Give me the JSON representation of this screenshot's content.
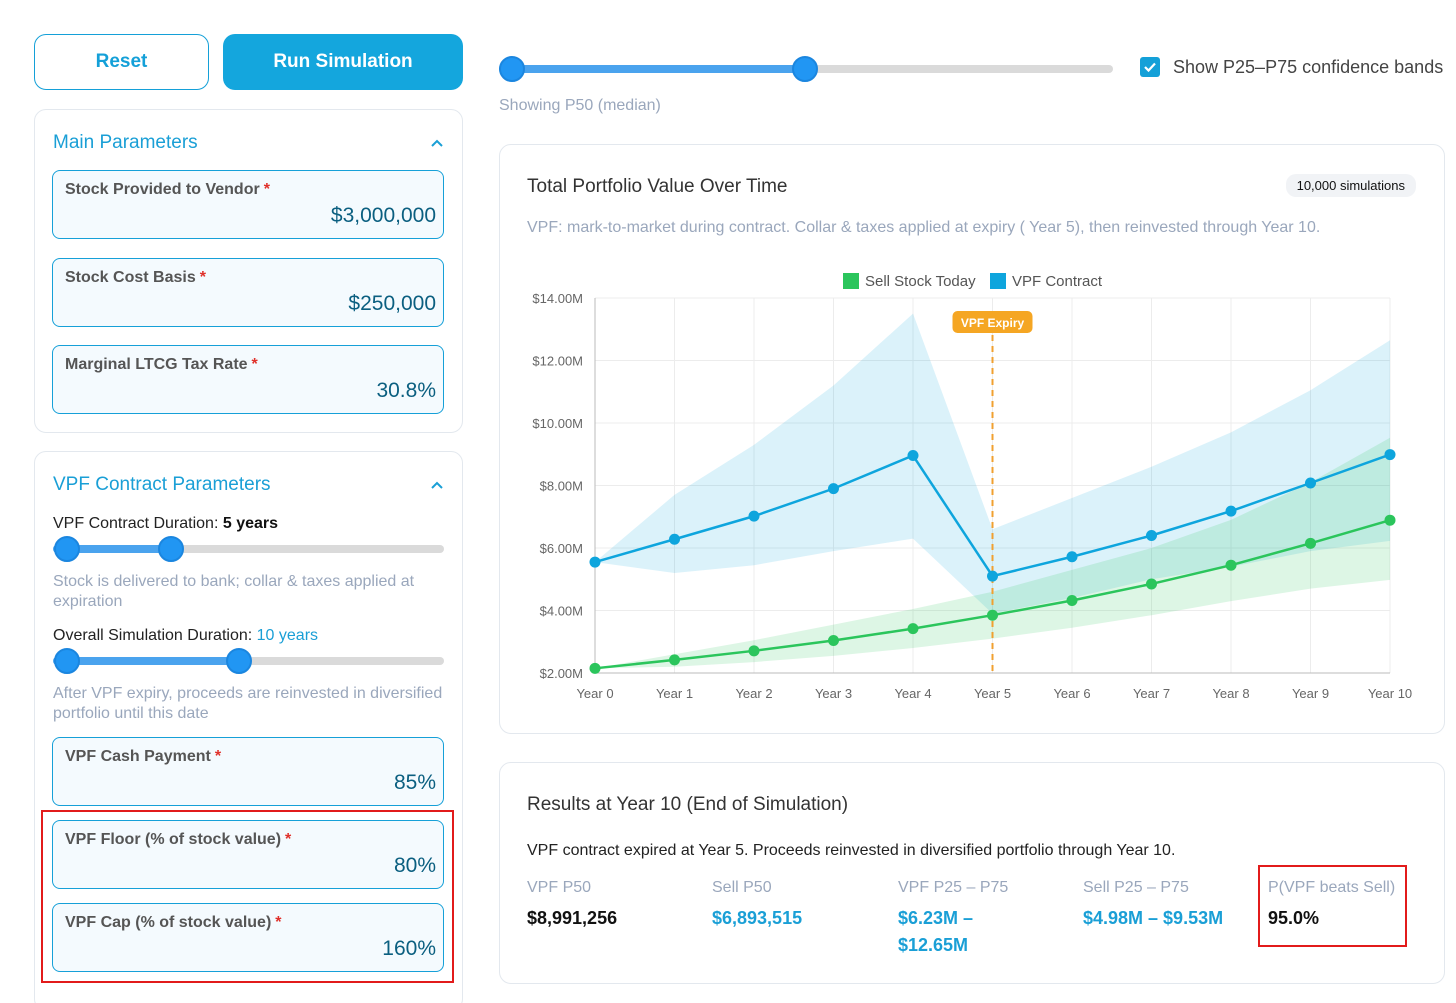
{
  "toolbar": {
    "reset_label": "Reset",
    "run_label": "Run Simulation"
  },
  "main_params": {
    "title": "Main Parameters",
    "fields": [
      {
        "label": "Stock Provided to Vendor",
        "value": "$3,000,000"
      },
      {
        "label": "Stock Cost Basis",
        "value": "$250,000"
      },
      {
        "label": "Marginal LTCG Tax Rate",
        "value": "30.8%"
      }
    ]
  },
  "vpf_params": {
    "title": "VPF Contract Parameters",
    "contract_duration": {
      "label": "VPF Contract Duration:",
      "value": "5 years",
      "hint": "Stock is delivered to bank; collar & taxes applied at expiration"
    },
    "sim_duration": {
      "label": "Overall Simulation Duration:",
      "value": "10 years",
      "hint": "After VPF expiry, proceeds are reinvested in diversified portfolio until this date"
    },
    "fields": [
      {
        "label": "VPF Cash Payment",
        "value": "85%"
      },
      {
        "label": "VPF Floor (% of stock value)",
        "value": "80%"
      },
      {
        "label": "VPF Cap (% of stock value)",
        "value": "160%"
      }
    ]
  },
  "percentile_control": {
    "checkbox_label": "Show P25–P75 confidence bands",
    "checked": true,
    "showing": "Showing P50 (median)"
  },
  "chart_panel": {
    "title": "Total Portfolio Value Over Time",
    "badge": "10,000 simulations",
    "subtitle": "VPF: mark-to-market during contract. Collar & taxes applied at expiry ( Year 5), then reinvested through Year 10."
  },
  "chart_data": {
    "type": "line",
    "categories": [
      "Year 0",
      "Year 1",
      "Year 2",
      "Year 3",
      "Year 4",
      "Year 5",
      "Year 6",
      "Year 7",
      "Year 8",
      "Year 9",
      "Year 10"
    ],
    "y_ticks": [
      "$2.00M",
      "$4.00M",
      "$6.00M",
      "$8.00M",
      "$10.00M",
      "$12.00M",
      "$14.00M"
    ],
    "ylim": [
      2,
      14
    ],
    "annotation": "VPF Expiry",
    "annotation_x": 5,
    "legend": [
      "Sell Stock Today",
      "VPF Contract"
    ],
    "series": [
      {
        "name": "Sell Stock Today",
        "color": "#2bc55c",
        "values": [
          2.15,
          2.42,
          2.71,
          3.04,
          3.42,
          3.85,
          4.32,
          4.85,
          5.45,
          6.15,
          6.89
        ],
        "p25": [
          2.15,
          2.2,
          2.35,
          2.55,
          2.8,
          3.1,
          3.45,
          3.85,
          4.3,
          4.7,
          4.98
        ],
        "p75": [
          2.15,
          2.6,
          3.05,
          3.55,
          4.05,
          4.6,
          5.3,
          6.0,
          6.9,
          8.1,
          9.53
        ]
      },
      {
        "name": "VPF Contract",
        "color": "#0ea5dd",
        "values": [
          5.55,
          6.28,
          7.02,
          7.9,
          8.96,
          5.1,
          5.72,
          6.4,
          7.18,
          8.08,
          8.99
        ],
        "p25": [
          5.55,
          5.2,
          5.45,
          5.9,
          6.3,
          3.9,
          4.4,
          5.0,
          5.4,
          5.9,
          6.23
        ],
        "p75": [
          5.55,
          7.7,
          9.3,
          11.2,
          13.5,
          6.6,
          7.6,
          8.6,
          9.7,
          11.05,
          12.65
        ]
      }
    ]
  },
  "results": {
    "title": "Results at Year 10 (End of Simulation)",
    "description": "VPF contract expired at Year 5. Proceeds reinvested in diversified portfolio through Year 10.",
    "metrics": [
      {
        "label": "VPF P50",
        "value": "$8,991,256"
      },
      {
        "label": "Sell P50",
        "value": "$6,893,515"
      },
      {
        "label": "VPF P25 – P75",
        "value": "$6.23M – $12.65M"
      },
      {
        "label": "Sell P25 – P75",
        "value": "$4.98M – $9.53M"
      },
      {
        "label": "P(VPF beats Sell)",
        "value": "95.0%"
      }
    ]
  }
}
